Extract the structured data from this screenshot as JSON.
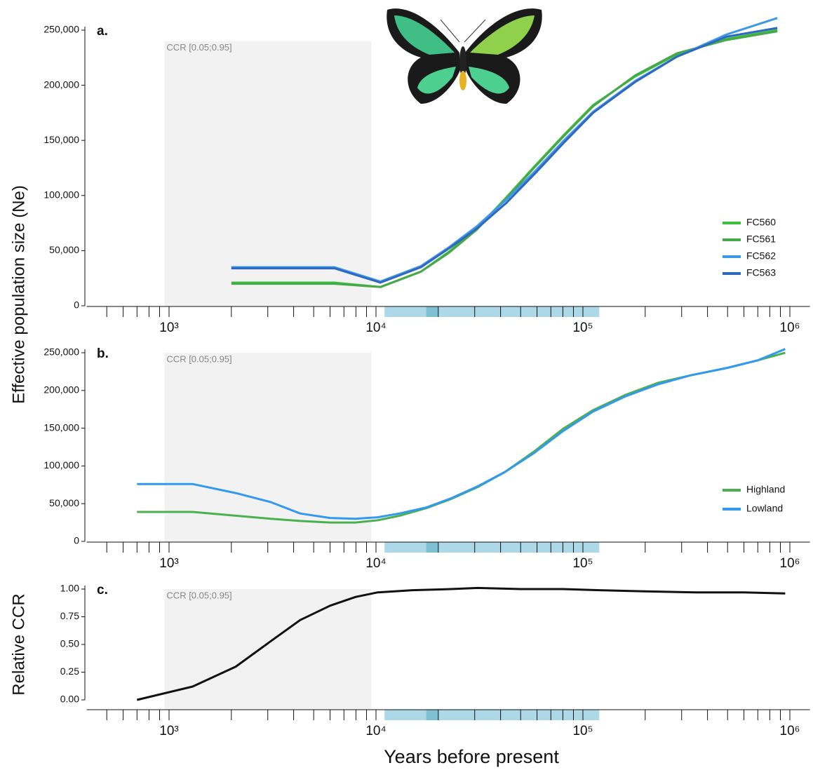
{
  "chart_data": [
    {
      "type": "line",
      "panel_label": "a.",
      "ylabel": "Effective population size (Ne)",
      "x": [
        2000,
        6300,
        10500,
        16500,
        22500,
        30700,
        42500,
        58700,
        81000,
        112000,
        179000,
        285000,
        493000,
        870000
      ],
      "series": [
        {
          "name": "FC560",
          "color": "#3cc03c",
          "values": [
            21000,
            21000,
            17000,
            31000,
            49000,
            70000,
            98000,
            127000,
            155000,
            182000,
            208000,
            228000,
            242000,
            250000
          ]
        },
        {
          "name": "FC561",
          "color": "#47a84a",
          "values": [
            20000,
            20000,
            17000,
            31000,
            48000,
            69000,
            97000,
            126000,
            154000,
            181000,
            209000,
            229000,
            241000,
            249000
          ]
        },
        {
          "name": "FC562",
          "color": "#3f97e8",
          "values": [
            35000,
            35000,
            22000,
            36000,
            53000,
            72000,
            96000,
            122000,
            150000,
            176000,
            204000,
            226000,
            246000,
            261000
          ]
        },
        {
          "name": "FC563",
          "color": "#2f68c0",
          "values": [
            34000,
            34000,
            21000,
            35000,
            52000,
            70000,
            93000,
            120000,
            148000,
            175000,
            203000,
            226000,
            244000,
            252000
          ]
        }
      ],
      "xlim": [
        400,
        1250000
      ],
      "log_x": true,
      "xticks": [
        {
          "value": 1000,
          "label": "10³"
        },
        {
          "value": 10000,
          "label": "10⁴"
        },
        {
          "value": 100000,
          "label": "10⁵"
        },
        {
          "value": 1000000,
          "label": "10⁶"
        }
      ],
      "xminor": [
        500,
        600,
        700,
        800,
        900,
        2000,
        3000,
        4000,
        5000,
        6000,
        7000,
        8000,
        9000,
        20000,
        30000,
        40000,
        50000,
        60000,
        70000,
        80000,
        90000,
        200000,
        300000,
        400000,
        500000,
        600000,
        700000,
        800000,
        900000
      ],
      "ylim": [
        0,
        250000
      ],
      "yticks": [
        0,
        {
          "value": 50000,
          "label": "50,000"
        },
        {
          "value": 100000,
          "label": "100,000"
        },
        {
          "value": 150000,
          "label": "150,000"
        },
        {
          "value": 200000,
          "label": "200,000"
        },
        {
          "value": 250000,
          "label": "250,000"
        }
      ],
      "ccr_region": {
        "label": "CCR [0.05;0.95]",
        "x": [
          950,
          9500
        ],
        "y": [
          0,
          240000
        ]
      },
      "x_band": [
        11000,
        120000
      ],
      "x_band_dark": [
        17500,
        20000
      ],
      "legend": "right"
    },
    {
      "type": "line",
      "panel_label": "b.",
      "x": [
        700,
        1300,
        2100,
        3100,
        4300,
        6000,
        8000,
        10200,
        13000,
        17500,
        23000,
        31000,
        42000,
        58000,
        80000,
        112000,
        160000,
        230000,
        330000,
        500000,
        700000,
        950000
      ],
      "series": [
        {
          "name": "Highland",
          "color": "#4caf50",
          "values": [
            39000,
            39000,
            34000,
            30000,
            27000,
            25000,
            25000,
            28000,
            34000,
            44000,
            56000,
            72000,
            92000,
            119000,
            149000,
            174000,
            194000,
            210000,
            220000,
            230000,
            240000,
            250000
          ]
        },
        {
          "name": "Lowland",
          "color": "#3399ee",
          "values": [
            76000,
            76000,
            64000,
            52000,
            37000,
            31000,
            30000,
            32000,
            37000,
            45000,
            57000,
            73000,
            92000,
            117000,
            146000,
            172000,
            192000,
            208000,
            220000,
            230000,
            240000,
            255000
          ]
        }
      ],
      "xlim": [
        400,
        1250000
      ],
      "log_x": true,
      "xticks": [
        {
          "value": 1000,
          "label": "10³"
        },
        {
          "value": 10000,
          "label": "10⁴"
        },
        {
          "value": 100000,
          "label": "10⁵"
        },
        {
          "value": 1000000,
          "label": "10⁶"
        }
      ],
      "xminor": [
        500,
        600,
        700,
        800,
        900,
        2000,
        3000,
        4000,
        5000,
        6000,
        7000,
        8000,
        9000,
        20000,
        30000,
        40000,
        50000,
        60000,
        70000,
        80000,
        90000,
        200000,
        300000,
        400000,
        500000,
        600000,
        700000,
        800000,
        900000
      ],
      "ylim": [
        0,
        250000
      ],
      "yticks": [
        0,
        {
          "value": 50000,
          "label": "50,000"
        },
        {
          "value": 100000,
          "label": "100,000"
        },
        {
          "value": 150000,
          "label": "150,000"
        },
        {
          "value": 200000,
          "label": "200,000"
        },
        {
          "value": 250000,
          "label": "250,000"
        }
      ],
      "ccr_region": {
        "label": "CCR [0.05;0.95]",
        "x": [
          950,
          9500
        ],
        "y": [
          0,
          250000
        ]
      },
      "x_band": [
        11000,
        120000
      ],
      "x_band_dark": [
        17500,
        20000
      ],
      "legend": "right"
    },
    {
      "type": "line",
      "panel_label": "c.",
      "ylabel": "Relative CCR",
      "xlabel": "Years before present",
      "x": [
        700,
        1300,
        2100,
        3100,
        4300,
        6000,
        8000,
        10200,
        15000,
        23000,
        31000,
        50000,
        80000,
        120000,
        200000,
        350000,
        600000,
        950000
      ],
      "series": [
        {
          "color": "#111111",
          "values": [
            0,
            0.12,
            0.3,
            0.53,
            0.72,
            0.85,
            0.93,
            0.97,
            0.99,
            1.0,
            1.01,
            1.0,
            1.0,
            0.99,
            0.98,
            0.97,
            0.97,
            0.96
          ]
        }
      ],
      "xlim": [
        400,
        1250000
      ],
      "log_x": true,
      "xticks": [
        {
          "value": 1000,
          "label": "10³"
        },
        {
          "value": 10000,
          "label": "10⁴"
        },
        {
          "value": 100000,
          "label": "10⁵"
        },
        {
          "value": 1000000,
          "label": "10⁶"
        }
      ],
      "xminor": [
        500,
        600,
        700,
        800,
        900,
        2000,
        3000,
        4000,
        5000,
        6000,
        7000,
        8000,
        9000,
        20000,
        30000,
        40000,
        50000,
        60000,
        70000,
        80000,
        90000,
        200000,
        300000,
        400000,
        500000,
        600000,
        700000,
        800000,
        900000
      ],
      "ylim": [
        0,
        1
      ],
      "yticks": [
        {
          "value": 0,
          "label": "0.00"
        },
        0.25,
        {
          "value": 0.5,
          "label": "0.50"
        },
        0.75,
        {
          "value": 1,
          "label": "1.00"
        }
      ],
      "ccr_region": {
        "label": "CCR [0.05;0.95]",
        "x": [
          950,
          9500
        ],
        "y": [
          0,
          1
        ]
      },
      "x_band": [
        11000,
        120000
      ],
      "x_band_dark": [
        17500,
        20000
      ]
    }
  ]
}
